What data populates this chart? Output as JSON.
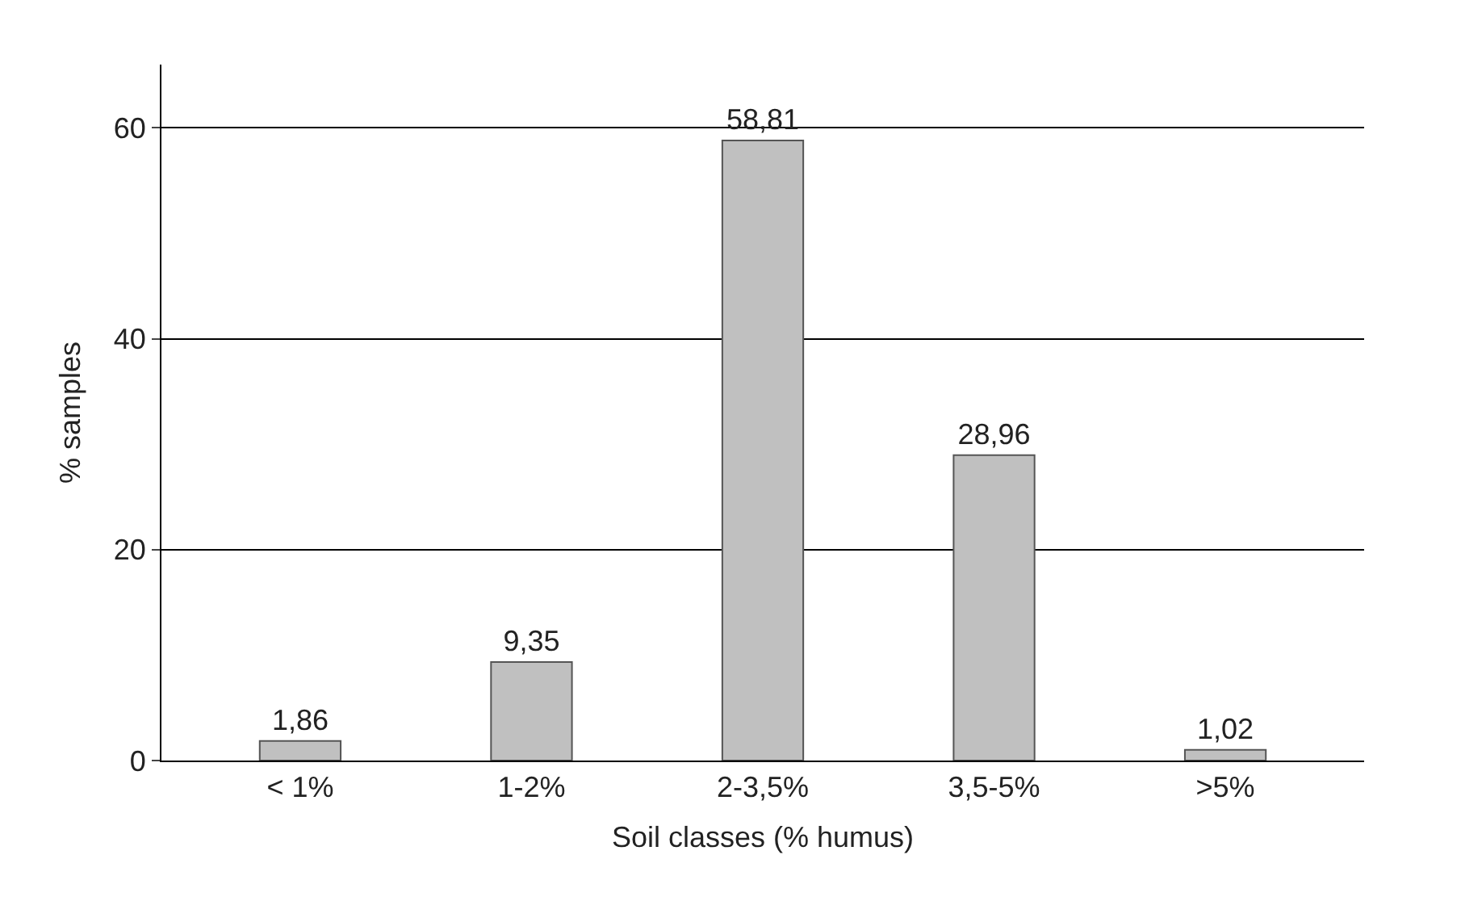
{
  "chart_data": {
    "type": "bar",
    "xlabel": "Soil classes (% humus)",
    "ylabel": "% samples",
    "categories": [
      "< 1%",
      "1-2%",
      "2-3,5%",
      "3,5-5%",
      ">5%"
    ],
    "values": [
      1.86,
      9.35,
      58.81,
      28.96,
      1.02
    ],
    "value_labels": [
      "1,86",
      "9,35",
      "58,81",
      "28,96",
      "1,02"
    ],
    "color": "#c0c0c0",
    "ylim": [
      0,
      66
    ],
    "yticks": [
      0,
      20,
      40,
      60
    ],
    "grid": "y"
  }
}
